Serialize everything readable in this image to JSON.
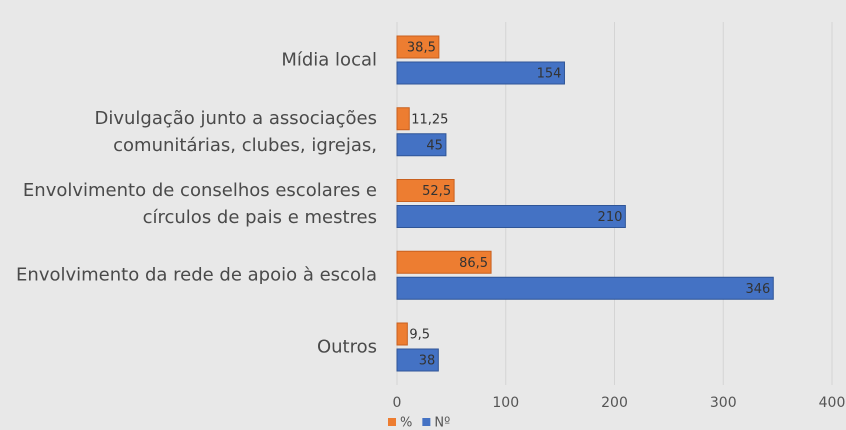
{
  "chart_data": {
    "type": "bar",
    "orientation": "horizontal",
    "categories": [
      "Mídia local",
      "Divulgação junto a associações\ncomunitárias, clubes, igrejas,",
      "Envolvimento de conselhos escolares e\ncírculos de pais e mestres",
      "Envolvimento da rede de apoio à escola",
      "Outros"
    ],
    "series": [
      {
        "name": "%",
        "color": "#ed7d31",
        "values": [
          38.5,
          11.25,
          52.5,
          86.5,
          9.5
        ],
        "value_labels": [
          "38,5",
          "11,25",
          "52,5",
          "86,5",
          "9,5"
        ]
      },
      {
        "name": "Nº",
        "color": "#4472c4",
        "values": [
          154,
          45,
          210,
          346,
          38
        ]
      }
    ],
    "xlim": [
      0,
      400
    ],
    "xticks": [
      0,
      100,
      200,
      300,
      400
    ],
    "grid": true,
    "legend": "bottom"
  }
}
